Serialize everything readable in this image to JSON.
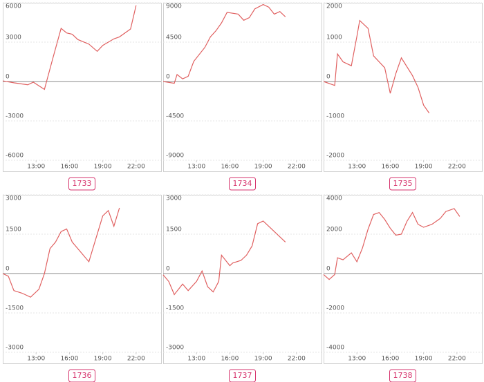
{
  "chart_data": [
    {
      "type": "line",
      "title": "1733",
      "color": "#e06060",
      "grid": true,
      "xlim": [
        10,
        24.25
      ],
      "xticks": [
        {
          "value": 13,
          "label": "13:00"
        },
        {
          "value": 16,
          "label": "16:00"
        },
        {
          "value": 19,
          "label": "19:00"
        },
        {
          "value": 22,
          "label": "22:00"
        }
      ],
      "ylim": [
        -6000,
        6000
      ],
      "yticks": [
        -6000,
        -3000,
        0,
        3000,
        6000
      ],
      "x": [
        10,
        11,
        12.25,
        12.75,
        13.75,
        14.5,
        15.25,
        15.75,
        16.25,
        16.75,
        17.75,
        18.5,
        19,
        20,
        20.5,
        21.5,
        22
      ],
      "values": [
        50,
        -100,
        -250,
        -50,
        -600,
        1750,
        4050,
        3700,
        3600,
        3200,
        2850,
        2300,
        2750,
        3250,
        3400,
        4000,
        5800
      ]
    },
    {
      "type": "line",
      "title": "1734",
      "color": "#e06060",
      "grid": true,
      "xlim": [
        10,
        24.25
      ],
      "xticks": [
        {
          "value": 13,
          "label": "13:00"
        },
        {
          "value": 16,
          "label": "16:00"
        },
        {
          "value": 19,
          "label": "19:00"
        },
        {
          "value": 22,
          "label": "22:00"
        }
      ],
      "ylim": [
        -9000,
        9000
      ],
      "yticks": [
        -9000,
        -4500,
        0,
        4500,
        9000
      ],
      "x": [
        10,
        11,
        11.25,
        11.75,
        12.25,
        12.75,
        13.75,
        14.25,
        14.75,
        15.25,
        15.75,
        16.75,
        17.25,
        17.75,
        18.25,
        19,
        19.5,
        20,
        20.5,
        21
      ],
      "values": [
        0,
        -200,
        800,
        300,
        600,
        2300,
        3900,
        5100,
        5800,
        6700,
        7900,
        7700,
        7000,
        7300,
        8300,
        8800,
        8500,
        7700,
        8000,
        7400
      ]
    },
    {
      "type": "line",
      "title": "1735",
      "color": "#e06060",
      "grid": true,
      "xlim": [
        10,
        24.25
      ],
      "xticks": [
        {
          "value": 13,
          "label": "13:00"
        },
        {
          "value": 16,
          "label": "16:00"
        },
        {
          "value": 19,
          "label": "19:00"
        },
        {
          "value": 22,
          "label": "22:00"
        }
      ],
      "ylim": [
        -2000,
        2000
      ],
      "yticks": [
        -2000,
        -1000,
        0,
        1000,
        2000
      ],
      "x": [
        10,
        11,
        11.25,
        11.75,
        12.5,
        13,
        13.25,
        14,
        14.5,
        15.5,
        16,
        16.5,
        17,
        18,
        18.5,
        19,
        19.5
      ],
      "values": [
        0,
        -100,
        700,
        500,
        400,
        1150,
        1550,
        1350,
        650,
        350,
        -300,
        200,
        600,
        150,
        -150,
        -600,
        -800
      ]
    },
    {
      "type": "line",
      "title": "1736",
      "color": "#e06060",
      "grid": true,
      "xlim": [
        10,
        24.25
      ],
      "xticks": [
        {
          "value": 13,
          "label": "13:00"
        },
        {
          "value": 16,
          "label": "16:00"
        },
        {
          "value": 19,
          "label": "19:00"
        },
        {
          "value": 22,
          "label": "22:00"
        }
      ],
      "ylim": [
        -3000,
        3000
      ],
      "yticks": [
        -3000,
        -1500,
        0,
        1500,
        3000
      ],
      "x": [
        10,
        10.5,
        11,
        11.75,
        12.5,
        13.25,
        13.75,
        14.25,
        14.75,
        15.25,
        15.75,
        16.25,
        16.75,
        17.75,
        19,
        19.5,
        20,
        20.5
      ],
      "values": [
        0,
        -100,
        -650,
        -750,
        -900,
        -600,
        0,
        950,
        1200,
        1600,
        1700,
        1200,
        950,
        450,
        2200,
        2400,
        1800,
        2500
      ]
    },
    {
      "type": "line",
      "title": "1737",
      "color": "#e06060",
      "grid": true,
      "xlim": [
        10,
        24.25
      ],
      "xticks": [
        {
          "value": 13,
          "label": "13:00"
        },
        {
          "value": 16,
          "label": "16:00"
        },
        {
          "value": 19,
          "label": "19:00"
        },
        {
          "value": 22,
          "label": "22:00"
        }
      ],
      "ylim": [
        -3000,
        3000
      ],
      "yticks": [
        -3000,
        -1500,
        0,
        1500,
        3000
      ],
      "x": [
        10,
        10.5,
        11,
        11.75,
        12.25,
        13,
        13.5,
        14,
        14.5,
        15,
        15.25,
        16,
        16.25,
        17,
        17.5,
        18,
        18.5,
        19,
        19.5,
        20,
        20.5,
        21
      ],
      "values": [
        -50,
        -300,
        -800,
        -400,
        -650,
        -300,
        100,
        -500,
        -700,
        -300,
        700,
        300,
        400,
        500,
        700,
        1050,
        1900,
        2000,
        1800,
        1600,
        1400,
        1200
      ]
    },
    {
      "type": "line",
      "title": "1738",
      "color": "#e06060",
      "grid": true,
      "xlim": [
        10,
        24.25
      ],
      "xticks": [
        {
          "value": 13,
          "label": "13:00"
        },
        {
          "value": 16,
          "label": "16:00"
        },
        {
          "value": 19,
          "label": "19:00"
        },
        {
          "value": 22,
          "label": "22:00"
        }
      ],
      "ylim": [
        -4000,
        4000
      ],
      "yticks": [
        -4000,
        -2000,
        0,
        2000,
        4000
      ],
      "x": [
        10,
        10.5,
        11,
        11.25,
        11.75,
        12.5,
        13,
        13.5,
        14,
        14.5,
        15,
        15.5,
        16,
        16.5,
        17,
        17.5,
        18,
        18.5,
        19,
        19.75,
        20.5,
        21,
        21.75,
        22.25
      ],
      "values": [
        -50,
        -300,
        -50,
        800,
        700,
        1050,
        600,
        1300,
        2250,
        3000,
        3100,
        2750,
        2300,
        1950,
        2000,
        2650,
        3100,
        2500,
        2350,
        2500,
        2800,
        3150,
        3300,
        2900
      ]
    }
  ]
}
